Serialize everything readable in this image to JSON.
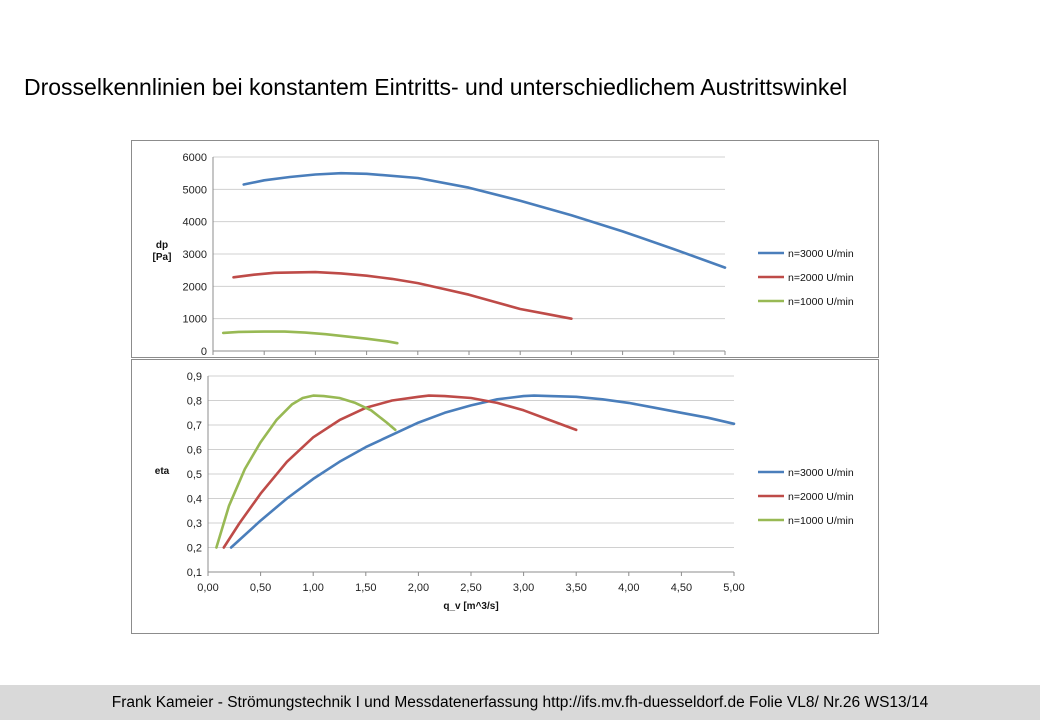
{
  "slide": {
    "title": "Drosselkennlinien bei konstantem Eintritts- und unterschiedlichem Austrittswinkel",
    "footer": "Frank Kameier - Strömungstechnik I und Messdatenerfassung  http://ifs.mv.fh-duesseldorf.de Folie VL8/ Nr.26 WS13/14"
  },
  "chart_data": [
    {
      "type": "line",
      "title": "",
      "ylabel": "dp\n[Pa]",
      "xlabel": "",
      "xlim": [
        0,
        5
      ],
      "ylim": [
        0,
        6000
      ],
      "yticks": [
        0,
        1000,
        2000,
        3000,
        4000,
        5000,
        6000
      ],
      "ytick_labels": [
        "0",
        "1000",
        "2000",
        "3000",
        "4000",
        "5000",
        "6000"
      ],
      "grid": true,
      "legend_position": "right",
      "series": [
        {
          "name": "n=3000 U/min",
          "color": "#4a7ebb",
          "x": [
            0.3,
            0.5,
            0.75,
            1.0,
            1.25,
            1.5,
            2.0,
            2.5,
            3.0,
            3.5,
            4.0,
            4.5,
            5.0
          ],
          "y": [
            5150,
            5280,
            5380,
            5460,
            5500,
            5480,
            5350,
            5050,
            4650,
            4200,
            3700,
            3150,
            2580
          ]
        },
        {
          "name": "n=2000 U/min",
          "color": "#be4b48",
          "x": [
            0.2,
            0.4,
            0.6,
            0.8,
            1.0,
            1.25,
            1.5,
            1.75,
            2.0,
            2.25,
            2.5,
            2.75,
            3.0,
            3.25,
            3.5
          ],
          "y": [
            2280,
            2360,
            2420,
            2430,
            2440,
            2400,
            2330,
            2230,
            2100,
            1920,
            1740,
            1520,
            1300,
            1150,
            1000
          ]
        },
        {
          "name": "n=1000 U/min",
          "color": "#98b954",
          "x": [
            0.1,
            0.25,
            0.5,
            0.7,
            0.9,
            1.1,
            1.3,
            1.5,
            1.7,
            1.8
          ],
          "y": [
            560,
            590,
            600,
            600,
            570,
            520,
            450,
            380,
            300,
            240
          ]
        }
      ]
    },
    {
      "type": "line",
      "title": "",
      "ylabel": "eta",
      "xlabel": "q_v [m^3/s]",
      "xlim": [
        0,
        5
      ],
      "ylim": [
        0.1,
        0.9
      ],
      "xticks": [
        0,
        0.5,
        1,
        1.5,
        2,
        2.5,
        3,
        3.5,
        4,
        4.5,
        5
      ],
      "xtick_labels": [
        "0,00",
        "0,50",
        "1,00",
        "1,50",
        "2,00",
        "2,50",
        "3,00",
        "3,50",
        "4,00",
        "4,50",
        "5,00"
      ],
      "yticks": [
        0.1,
        0.2,
        0.3,
        0.4,
        0.5,
        0.6,
        0.7,
        0.8,
        0.9
      ],
      "ytick_labels": [
        "0,1",
        "0,2",
        "0,3",
        "0,4",
        "0,5",
        "0,6",
        "0,7",
        "0,8",
        "0,9"
      ],
      "grid": true,
      "legend_position": "right",
      "series": [
        {
          "name": "n=3000 U/min",
          "color": "#4a7ebb",
          "x": [
            0.22,
            0.5,
            0.75,
            1.0,
            1.25,
            1.5,
            1.75,
            2.0,
            2.25,
            2.5,
            2.75,
            3.0,
            3.1,
            3.25,
            3.5,
            3.75,
            4.0,
            4.25,
            4.5,
            4.75,
            5.0
          ],
          "y": [
            0.2,
            0.31,
            0.4,
            0.48,
            0.55,
            0.61,
            0.66,
            0.71,
            0.75,
            0.78,
            0.805,
            0.818,
            0.82,
            0.818,
            0.815,
            0.805,
            0.79,
            0.77,
            0.75,
            0.73,
            0.705
          ]
        },
        {
          "name": "n=2000 U/min",
          "color": "#be4b48",
          "x": [
            0.15,
            0.3,
            0.5,
            0.75,
            1.0,
            1.25,
            1.5,
            1.75,
            2.0,
            2.1,
            2.25,
            2.5,
            2.75,
            3.0,
            3.25,
            3.5
          ],
          "y": [
            0.2,
            0.3,
            0.42,
            0.55,
            0.65,
            0.72,
            0.77,
            0.8,
            0.815,
            0.82,
            0.818,
            0.81,
            0.79,
            0.76,
            0.72,
            0.68
          ]
        },
        {
          "name": "n=1000 U/min",
          "color": "#98b954",
          "x": [
            0.08,
            0.2,
            0.35,
            0.5,
            0.65,
            0.8,
            0.9,
            1.0,
            1.1,
            1.25,
            1.4,
            1.55,
            1.7,
            1.78
          ],
          "y": [
            0.2,
            0.37,
            0.52,
            0.63,
            0.72,
            0.785,
            0.81,
            0.82,
            0.818,
            0.81,
            0.79,
            0.76,
            0.71,
            0.68
          ]
        }
      ]
    }
  ]
}
